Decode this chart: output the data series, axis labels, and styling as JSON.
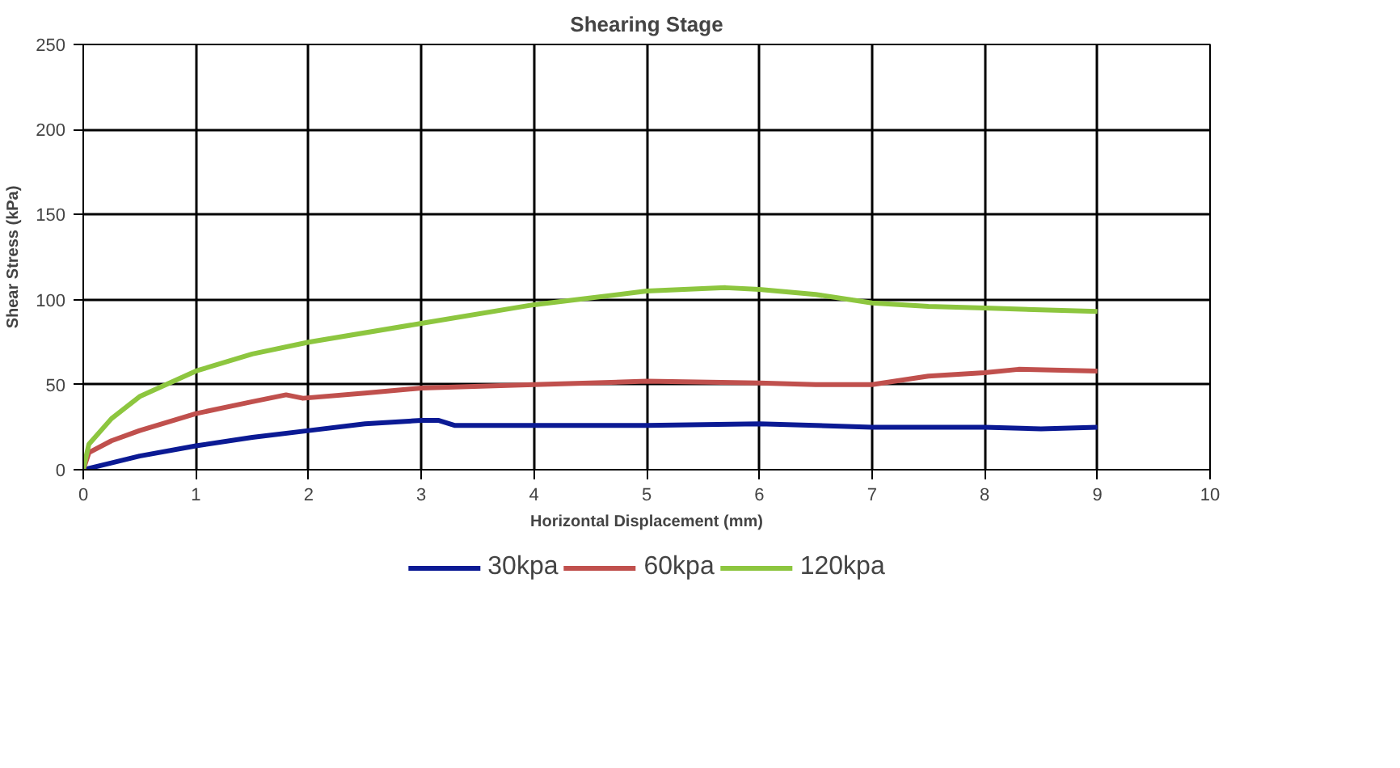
{
  "chart_data": {
    "type": "line",
    "title": "Shearing Stage",
    "xlabel": "Horizontal Displacement (mm)",
    "ylabel": "Shear Stress (kPa)",
    "xlim": [
      0,
      10
    ],
    "xticks": [
      0,
      1,
      2,
      3,
      4,
      5,
      6,
      7,
      8,
      9,
      10
    ],
    "ylim": [
      0,
      250
    ],
    "yticks": [
      0,
      50,
      100,
      150,
      200,
      250
    ],
    "grid": true,
    "legend": "bottom",
    "marker": "none",
    "line_style": "solid",
    "series": [
      {
        "name": "30kpa",
        "color": "#0b1a94",
        "x": [
          0,
          0.25,
          0.5,
          1,
          1.5,
          2,
          2.5,
          3,
          3.15,
          3.3,
          4,
          5,
          6,
          7,
          8,
          8.5,
          9
        ],
        "values": [
          0,
          4,
          8,
          14,
          19,
          23,
          27,
          29,
          29,
          26,
          26,
          26,
          27,
          25,
          25,
          24,
          25
        ]
      },
      {
        "name": "60kpa",
        "color": "#c0504d",
        "x": [
          0,
          0.05,
          0.25,
          0.5,
          1,
          1.5,
          1.8,
          1.95,
          2.5,
          3,
          4,
          5,
          6,
          6.5,
          7,
          7.5,
          8,
          8.3,
          9
        ],
        "values": [
          0,
          10,
          17,
          23,
          33,
          40,
          44,
          42,
          45,
          48,
          50,
          52,
          51,
          50,
          50,
          55,
          57,
          59,
          58
        ]
      },
      {
        "name": "120kpa",
        "color": "#8dc63f",
        "x": [
          0,
          0.05,
          0.25,
          0.5,
          1,
          1.5,
          2,
          3,
          4,
          5,
          5.7,
          6,
          6.5,
          7,
          7.5,
          8,
          9
        ],
        "values": [
          0,
          15,
          30,
          43,
          58,
          68,
          75,
          86,
          97,
          105,
          107,
          106,
          103,
          98,
          96,
          95,
          93
        ]
      }
    ]
  }
}
